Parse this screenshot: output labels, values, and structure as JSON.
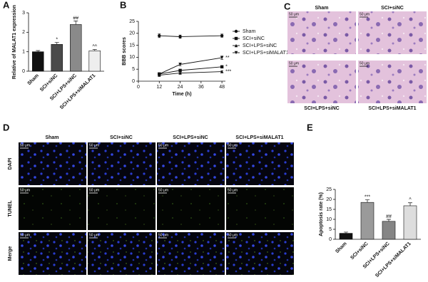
{
  "chart_data": [
    {
      "type": "bar",
      "panel": "A",
      "ylabel": "Relative of MALAT1 expression",
      "categories": [
        "Sham",
        "SCI+siNC",
        "SCI+LPS+siNC",
        "SCI+LPS+siMALAT1"
      ],
      "values": [
        1.0,
        1.38,
        2.4,
        1.05
      ],
      "errors": [
        0.06,
        0.1,
        0.18,
        0.06
      ],
      "annotations": [
        null,
        "*",
        "##",
        "^^"
      ],
      "colors": [
        "#111111",
        "#4a4a4a",
        "#8a8a8a",
        "#eeeeee"
      ],
      "ylim": [
        0,
        3
      ],
      "yticks": [
        0,
        1,
        2,
        3
      ]
    },
    {
      "type": "line",
      "panel": "B",
      "ylabel": "BBB scores",
      "xlabel": "Time (h)",
      "x": [
        12,
        24,
        48
      ],
      "series": [
        {
          "name": "Sham",
          "color": "#111111",
          "marker": "circle",
          "values": [
            19,
            18.6,
            19
          ],
          "errors": [
            0.8,
            0.7,
            0.7
          ]
        },
        {
          "name": "SCI+siNC",
          "color": "#111111",
          "marker": "square",
          "values": [
            3,
            4.5,
            6
          ],
          "errors": [
            0.3,
            0.4,
            0.5
          ],
          "annotation": "*"
        },
        {
          "name": "SCI+LPS+siNC",
          "color": "#111111",
          "marker": "triangle",
          "values": [
            2.5,
            3.4,
            4
          ],
          "errors": [
            0.3,
            0.3,
            0.4
          ],
          "annotation": "***"
        },
        {
          "name": "SCI+LPS+siMALAT1",
          "color": "#111111",
          "marker": "triangle-down",
          "values": [
            3,
            7,
            9.8
          ],
          "errors": [
            0.3,
            0.6,
            0.7
          ],
          "annotation": "**"
        }
      ],
      "xlim": [
        0,
        50
      ],
      "xticks": [
        0,
        12,
        24,
        36,
        48
      ],
      "ylim": [
        0,
        25
      ],
      "yticks": [
        0,
        5,
        10,
        15,
        20,
        25
      ]
    },
    {
      "type": "bar",
      "panel": "E",
      "ylabel": "Apoptosis rate (%)",
      "categories": [
        "Sham",
        "SCI+siNC",
        "SCI+LPS+siNC",
        "SCI+LPS+siMALAT1"
      ],
      "values": [
        3,
        18.5,
        9,
        16.8
      ],
      "errors": [
        0.6,
        1.3,
        1.0,
        1.5
      ],
      "annotations": [
        null,
        "***",
        "##",
        "^"
      ],
      "colors": [
        "#111111",
        "#9a9a9a",
        "#858585",
        "#dddddd"
      ],
      "ylim": [
        0,
        25
      ],
      "yticks": [
        0,
        5,
        10,
        15,
        20,
        25
      ]
    }
  ],
  "histology": {
    "panel": "C",
    "labels": [
      "Sham",
      "SCI+siNC",
      "SCI+LPS+siNC",
      "SCI+LPS+siMALAT1"
    ],
    "scale_bar": "50 μm"
  },
  "tunel": {
    "panel": "D",
    "columns": [
      "Sham",
      "SCI+siNC",
      "SCI+LPS+siNC",
      "SCI+LPS+siMALAT1"
    ],
    "rows": [
      "DAPI",
      "TUNEL",
      "Merge"
    ],
    "scale_bar": "50 μm"
  }
}
